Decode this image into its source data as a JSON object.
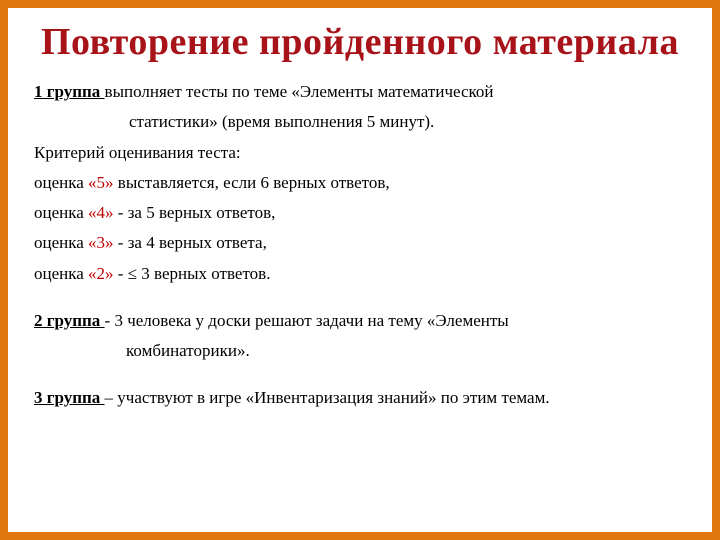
{
  "colors": {
    "border": "#e1760f",
    "title": "#a8131a",
    "accent": "#c00000",
    "text": "#000000",
    "background": "#ffffff"
  },
  "typography": {
    "title_fontsize": 38,
    "title_weight": "bold",
    "body_fontsize": 17,
    "font_family": "Times New Roman"
  },
  "title": "Повторение пройденного материала",
  "group1": {
    "label": " 1  группа ",
    "line1_rest": "выполняет тесты по теме «Элементы математической",
    "line2": "статистики» (время выполнения 5 минут)."
  },
  "criteria_heading": "Критерий оценивания теста:",
  "grades": [
    {
      "pre": "оценка ",
      "mark": "«5»",
      "post": " выставляется, если 6 верных ответов,"
    },
    {
      "pre": "оценка ",
      "mark": "«4»",
      "post": " - за 5 верных ответов,"
    },
    {
      "pre": "оценка ",
      "mark": "«3»",
      "post": " - за 4 верных ответа,"
    },
    {
      "pre": "оценка ",
      "mark": "«2»",
      "post": " - ≤  3 верных ответов."
    }
  ],
  "group2": {
    "label": " 2 группа ",
    "line1_rest": " - 3 человека у доски решают задачи на тему «Элементы",
    "line2": "комбинаторики»."
  },
  "group3": {
    "label": " 3 группа ",
    "rest": "– участвуют  в игре «Инвентаризация знаний» по этим темам."
  }
}
